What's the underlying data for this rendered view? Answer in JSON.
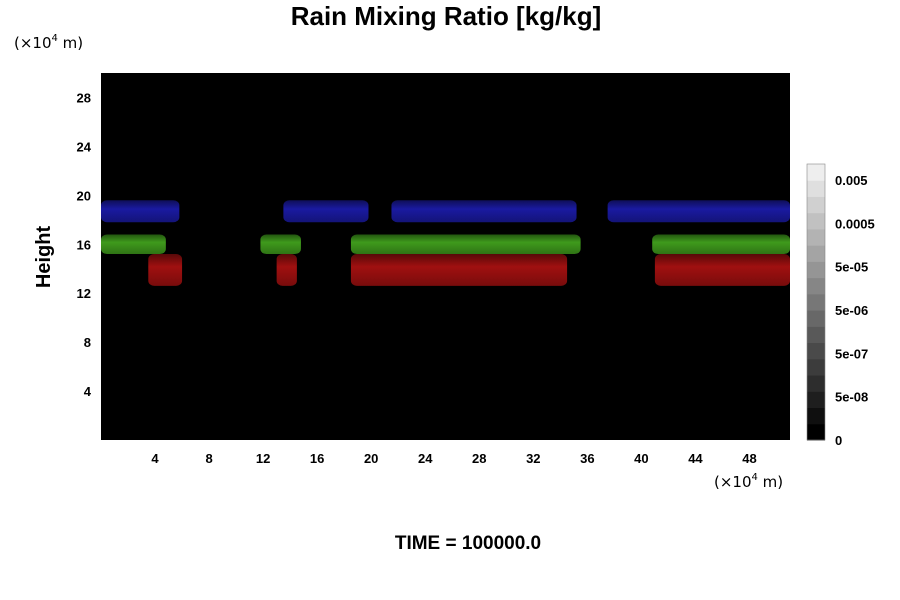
{
  "chart_data": {
    "type": "heatmap",
    "title": "Rain Mixing Ratio [kg/kg]",
    "ylabel": "Height",
    "x_unit": {
      "prefix": "(×10",
      "exp": "4",
      "suffix": " m)"
    },
    "y_unit": {
      "prefix": "(×10",
      "exp": "4",
      "suffix": " m)"
    },
    "xlim": [
      0,
      51
    ],
    "ylim": [
      0,
      30
    ],
    "x_ticks": [
      4,
      8,
      12,
      16,
      20,
      24,
      28,
      32,
      36,
      40,
      44,
      48
    ],
    "y_ticks": [
      4,
      8,
      12,
      16,
      20,
      24,
      28
    ],
    "colorbar_ticks": [
      "0.005",
      "0.0005",
      "5e-05",
      "5e-06",
      "5e-07",
      "5e-08",
      "0"
    ],
    "bands": [
      {
        "color": "#1a1aa0",
        "y_range": [
          17.8,
          19.6
        ],
        "x_segments": [
          [
            0,
            5.8
          ],
          [
            13.5,
            19.8
          ],
          [
            21.5,
            35.2
          ],
          [
            37.5,
            51
          ]
        ]
      },
      {
        "color": "#3f9a1c",
        "y_range": [
          15.2,
          16.8
        ],
        "x_segments": [
          [
            0,
            4.8
          ],
          [
            11.8,
            14.8
          ],
          [
            18.5,
            35.5
          ],
          [
            40.8,
            51
          ]
        ]
      },
      {
        "color": "#a01010",
        "y_range": [
          12.6,
          15.2
        ],
        "x_segments": [
          [
            3.5,
            6
          ],
          [
            13,
            14.5
          ],
          [
            18.5,
            34.5
          ],
          [
            41,
            51
          ]
        ]
      }
    ],
    "background": "#000000",
    "time_label": "TIME = 100000.0"
  }
}
